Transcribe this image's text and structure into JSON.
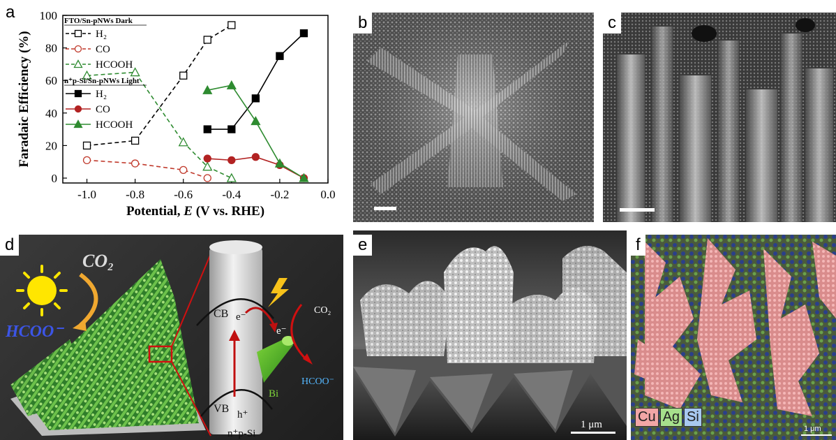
{
  "figure": {
    "panel_labels": {
      "a": "a",
      "b": "b",
      "c": "c",
      "d": "d",
      "e": "e",
      "f": "f"
    },
    "panel_d": {
      "co2": "CO₂",
      "hcoo": "HCOO⁻",
      "cb": "CB",
      "vb": "VB",
      "electron_cb": "e⁻",
      "electron_bi": "e⁻",
      "hole": "h⁺",
      "bi": "Bi",
      "co2_small": "CO₂",
      "hcoo_small": "HCOO⁻",
      "si": "n⁺p-Si"
    },
    "panel_e": {
      "scale_bar": "1 μm"
    },
    "panel_f": {
      "legend": [
        "Cu",
        "Ag",
        "Si"
      ],
      "scale_bar": "1 μm"
    }
  },
  "chart_data": {
    "type": "line",
    "xlabel_parts": [
      "Potential, ",
      "E",
      " (V vs. RHE)"
    ],
    "ylabel": "Faradaic Efficiency (%)",
    "xlim": [
      -1.1,
      0.0
    ],
    "ylim": [
      -3,
      100
    ],
    "xticks": [
      -1.0,
      -0.8,
      -0.6,
      -0.4,
      -0.2,
      0.0
    ],
    "xtick_labels": [
      "-1.0",
      "-0.8",
      "-0.6",
      "-0.4",
      "-0.2",
      "0.0"
    ],
    "yticks": [
      0,
      20,
      40,
      60,
      80,
      100
    ],
    "ytick_labels": [
      "0",
      "20",
      "40",
      "60",
      "80",
      "100"
    ],
    "legend_groups": [
      {
        "title": "FTO/Sn-pNWs Dark",
        "entries": [
          "H₂",
          "CO",
          "HCOOH"
        ]
      },
      {
        "title": "n⁺p-Si/Sn-pNWs Light",
        "entries": [
          "H₂",
          "CO",
          "HCOOH"
        ]
      }
    ],
    "legend_location": "upper-left",
    "series": [
      {
        "group": "FTO/Sn-pNWs Dark",
        "name": "H₂",
        "color": "#000000",
        "marker": "square",
        "filled": false,
        "dashed": true,
        "x": [
          -1.0,
          -0.8,
          -0.6,
          -0.5,
          -0.4
        ],
        "y": [
          20,
          23,
          63,
          85,
          94
        ]
      },
      {
        "group": "FTO/Sn-pNWs Dark",
        "name": "CO",
        "color": "#c0392b",
        "marker": "circle",
        "filled": false,
        "dashed": true,
        "x": [
          -1.0,
          -0.8,
          -0.6,
          -0.5
        ],
        "y": [
          11,
          9,
          5,
          0
        ]
      },
      {
        "group": "FTO/Sn-pNWs Dark",
        "name": "HCOOH",
        "color": "#2e8b30",
        "marker": "triangle",
        "filled": false,
        "dashed": true,
        "x": [
          -1.0,
          -0.8,
          -0.6,
          -0.5,
          -0.4
        ],
        "y": [
          63,
          65,
          22,
          7,
          0
        ]
      },
      {
        "group": "n⁺p-Si/Sn-pNWs Light",
        "name": "H₂",
        "color": "#000000",
        "marker": "square",
        "filled": true,
        "dashed": false,
        "x": [
          -0.5,
          -0.4,
          -0.3,
          -0.2,
          -0.1
        ],
        "y": [
          30,
          30,
          49,
          75,
          89
        ]
      },
      {
        "group": "n⁺p-Si/Sn-pNWs Light",
        "name": "CO",
        "color": "#b22222",
        "marker": "circle",
        "filled": true,
        "dashed": false,
        "x": [
          -0.5,
          -0.4,
          -0.3,
          -0.2,
          -0.1
        ],
        "y": [
          12,
          11,
          13,
          8,
          0
        ]
      },
      {
        "group": "n⁺p-Si/Sn-pNWs Light",
        "name": "HCOOH",
        "color": "#2e8b30",
        "marker": "triangle",
        "filled": true,
        "dashed": false,
        "x": [
          -0.5,
          -0.4,
          -0.3,
          -0.2,
          -0.1
        ],
        "y": [
          54,
          57,
          35,
          9,
          0
        ]
      }
    ]
  }
}
